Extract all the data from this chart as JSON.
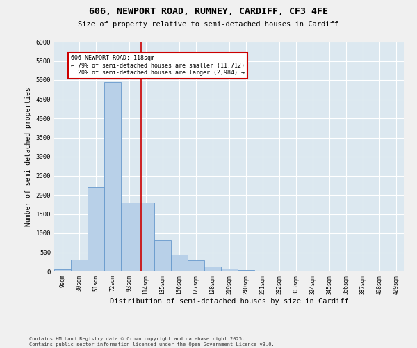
{
  "title_line1": "606, NEWPORT ROAD, RUMNEY, CARDIFF, CF3 4FE",
  "title_line2": "Size of property relative to semi-detached houses in Cardiff",
  "xlabel": "Distribution of semi-detached houses by size in Cardiff",
  "ylabel": "Number of semi-detached properties",
  "footer_line1": "Contains HM Land Registry data © Crown copyright and database right 2025.",
  "footer_line2": "Contains public sector information licensed under the Open Government Licence v3.0.",
  "bar_color": "#b8d0e8",
  "bar_edge_color": "#6699cc",
  "background_color": "#dce8f0",
  "grid_color": "#ffffff",
  "fig_background_color": "#f0f0f0",
  "annotation_box_color": "#cc0000",
  "property_line_color": "#cc0000",
  "property_size": 118,
  "property_label": "606 NEWPORT ROAD: 118sqm",
  "smaller_pct": 79,
  "smaller_count": "11,712",
  "larger_pct": 20,
  "larger_count": "2,984",
  "bin_labels": [
    "9sqm",
    "30sqm",
    "51sqm",
    "72sqm",
    "93sqm",
    "114sqm",
    "135sqm",
    "156sqm",
    "177sqm",
    "198sqm",
    "219sqm",
    "240sqm",
    "261sqm",
    "282sqm",
    "303sqm",
    "324sqm",
    "345sqm",
    "366sqm",
    "387sqm",
    "408sqm",
    "429sqm"
  ],
  "bin_left_edges": [
    9,
    30,
    51,
    72,
    93,
    114,
    135,
    156,
    177,
    198,
    219,
    240,
    261,
    282,
    303,
    324,
    345,
    366,
    387,
    408,
    429
  ],
  "bar_heights": [
    50,
    310,
    2200,
    4950,
    1800,
    1800,
    820,
    440,
    290,
    125,
    75,
    45,
    25,
    12,
    4,
    2,
    1,
    0,
    0,
    0
  ],
  "ylim": [
    0,
    6000
  ],
  "yticks": [
    0,
    500,
    1000,
    1500,
    2000,
    2500,
    3000,
    3500,
    4000,
    4500,
    5000,
    5500,
    6000
  ]
}
